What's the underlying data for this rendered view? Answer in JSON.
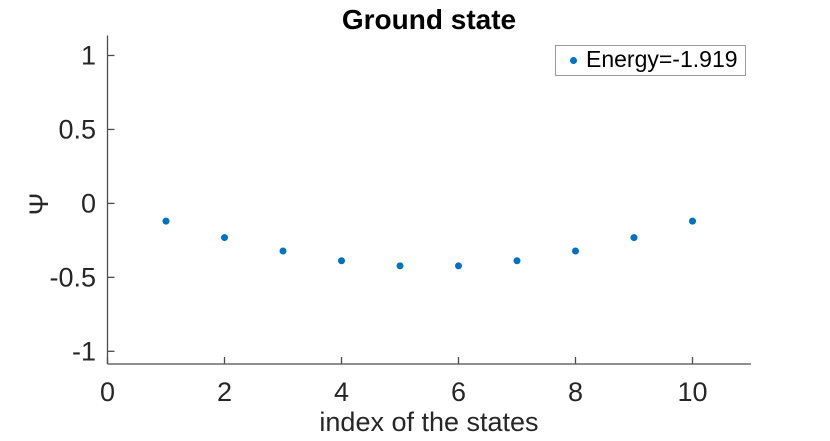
{
  "figure": {
    "title": "Ground state",
    "xlabel": "index of the states",
    "ylabel": "Ψ",
    "legend": {
      "label": "Energy=-1.919"
    },
    "colors": {
      "marker": "#0072BD",
      "axis_line": "#4d4d4d",
      "tick_label": "#262626",
      "legend_border": "#999999",
      "title": "#000000",
      "background": "#ffffff"
    }
  },
  "chart_data": {
    "type": "scatter",
    "title": "Ground state",
    "xlabel": "index of the states",
    "ylabel": "Ψ",
    "x": [
      1,
      2,
      3,
      4,
      5,
      6,
      7,
      8,
      9,
      10
    ],
    "y": [
      -0.12,
      -0.231,
      -0.322,
      -0.388,
      -0.422,
      -0.422,
      -0.388,
      -0.322,
      -0.231,
      -0.12
    ],
    "xticks": [
      0,
      2,
      4,
      6,
      8,
      10
    ],
    "yticks": [
      -1,
      -0.5,
      0,
      0.5,
      1
    ],
    "xtick_labels": [
      "0",
      "2",
      "4",
      "6",
      "8",
      "10"
    ],
    "ytick_labels": [
      "-1",
      "-0.5",
      "0",
      "0.5",
      "1"
    ],
    "xlim": [
      0,
      11
    ],
    "ylim": [
      -1.1,
      1.15
    ],
    "grid": false,
    "legend": {
      "entries": [
        "Energy=-1.919"
      ],
      "position": "top-right"
    },
    "marker": "dot",
    "marker_color": "#0072BD"
  }
}
